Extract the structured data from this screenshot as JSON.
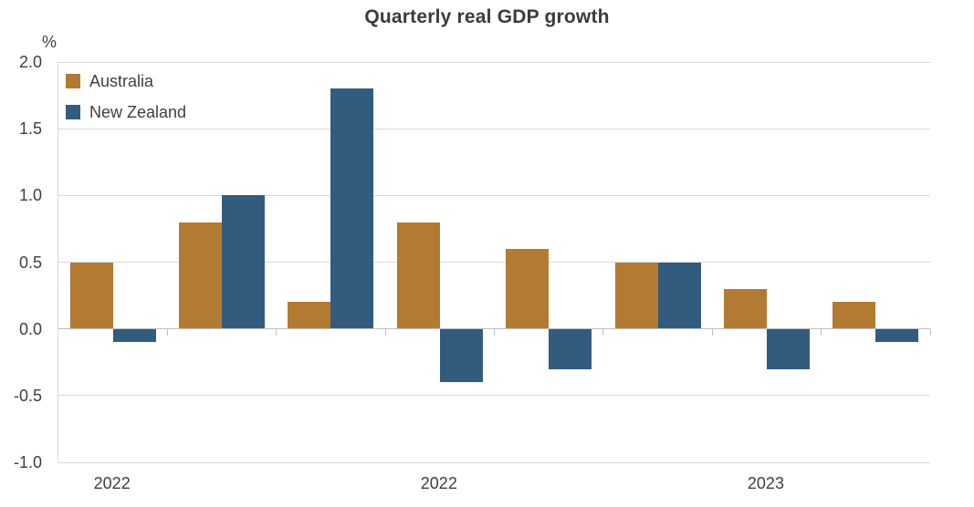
{
  "chart_data": {
    "type": "bar",
    "title": "Quarterly real GDP growth",
    "ylabel": "%",
    "n_categories": 8,
    "ylim": [
      -1.0,
      2.0
    ],
    "y_ticks": [
      "2.0",
      "1.5",
      "1.0",
      "0.5",
      "0.0",
      "-0.5",
      "-1.0"
    ],
    "x_axis_labels": [
      {
        "text": "2022",
        "category": 0
      },
      {
        "text": "2022",
        "category": 3
      },
      {
        "text": "2023",
        "category": 6
      }
    ],
    "series": [
      {
        "name": "Australia",
        "color": "#b27a32",
        "values": [
          0.5,
          0.8,
          0.2,
          0.8,
          0.6,
          0.5,
          0.3,
          0.2
        ]
      },
      {
        "name": "New Zealand",
        "color": "#315c7e",
        "values": [
          -0.1,
          1.0,
          1.8,
          -0.4,
          -0.3,
          0.5,
          -0.3,
          -0.1
        ]
      }
    ],
    "legend_position": "top-left",
    "grid": true,
    "colors": {
      "grid": "#d9d9d9",
      "axis": "#bfbfbf",
      "text": "#3f3f3f",
      "title": "#3b3b3b",
      "background": "#ffffff"
    }
  }
}
